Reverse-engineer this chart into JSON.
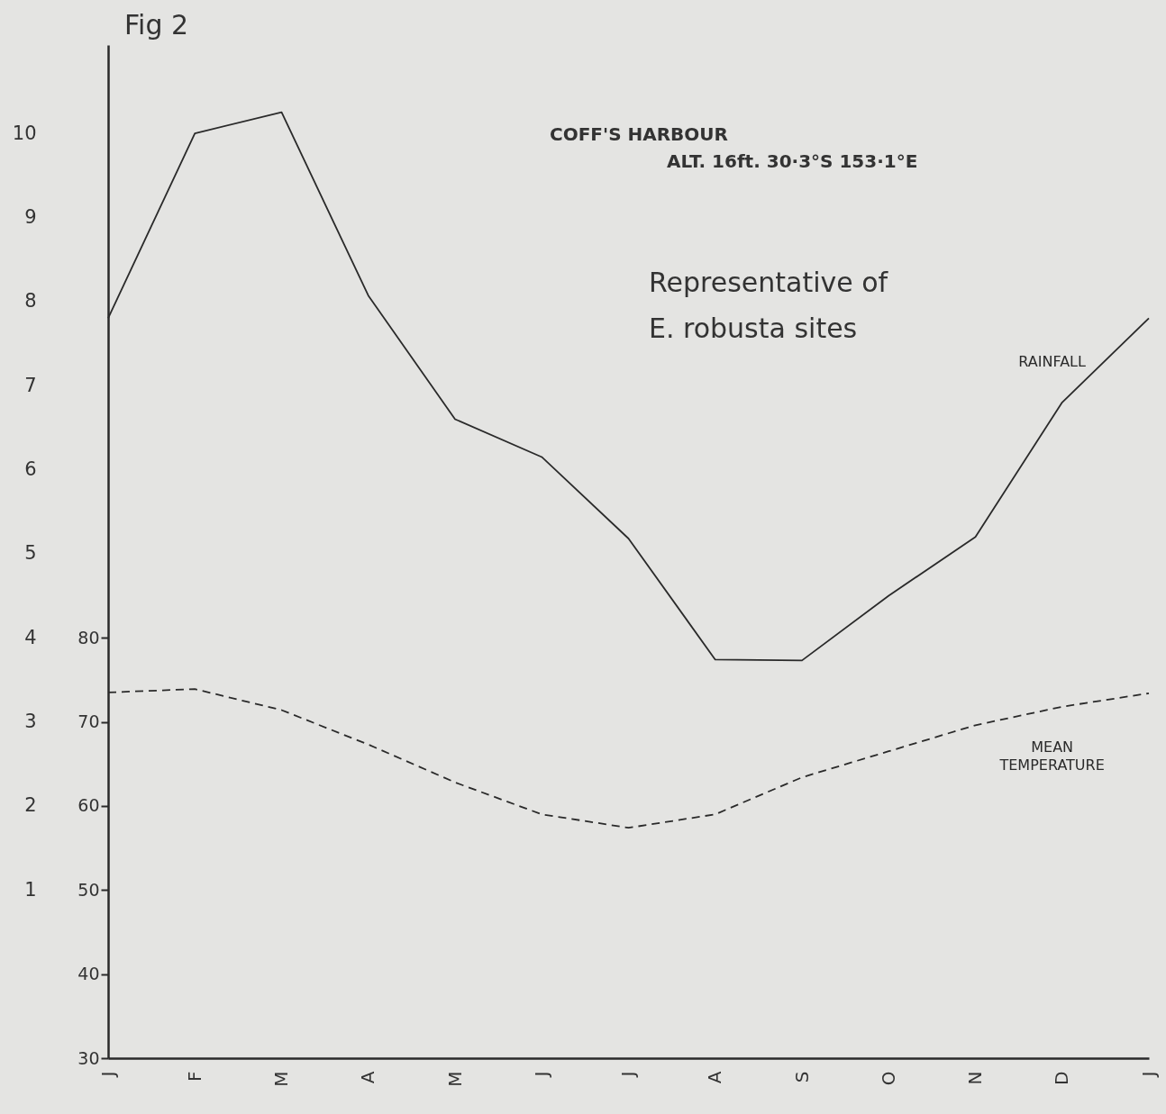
{
  "chart_data": {
    "type": "line",
    "title": "Fig 2",
    "categories": [
      "J",
      "F",
      "M",
      "A",
      "M",
      "J",
      "J",
      "A",
      "S",
      "O",
      "N",
      "D",
      "J"
    ],
    "series": [
      {
        "name": "RAINFALL",
        "color": "#2a2a2a",
        "line_style": "solid",
        "values": [
          7.8,
          10.0,
          10.25,
          8.07,
          6.6,
          6.15,
          5.18,
          3.74,
          3.73,
          4.5,
          5.2,
          6.8,
          7.8
        ]
      },
      {
        "name": "MEAN TEMPERATURE",
        "color": "#2a2a2a",
        "line_style": "dashed",
        "axis": "y2",
        "values": [
          73.5,
          73.9,
          71.4,
          67.3,
          62.8,
          59.0,
          57.4,
          59.0,
          63.4,
          66.5,
          69.6,
          71.8,
          73.4
        ]
      }
    ],
    "ylim": [
      -1,
      11.05
    ],
    "yticks": [
      1,
      2,
      3,
      4,
      5,
      6,
      7,
      8,
      9,
      10
    ],
    "y2lim": [
      30,
      150.5
    ],
    "y2ticks": [
      30,
      40,
      50,
      60,
      70,
      80
    ],
    "annotations": [
      "COFF'S HARBOUR",
      "ALT. 16ft.      30·3°S  153·1°E",
      "Representative of\nE. robusta sites"
    ],
    "grid": false,
    "marker": "none"
  }
}
